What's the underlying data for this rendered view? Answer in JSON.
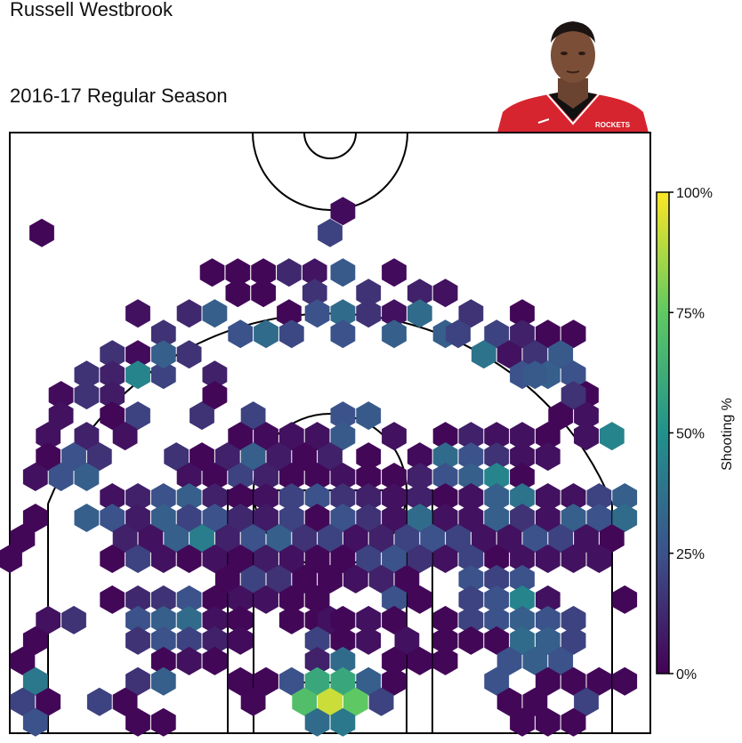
{
  "title_line1": "Russell Westbrook",
  "title_line2": "2016-17 Regular Season",
  "player_image": "player-headshot",
  "chart_data": {
    "type": "heatmap",
    "subtype": "hexbin-shot-chart",
    "court": "half-court, basket at bottom",
    "x_range": [
      -250,
      250
    ],
    "y_range": [
      -47.5,
      422.5
    ],
    "colormap": "viridis",
    "colorbar": {
      "label": "Shooting %",
      "ticks": [
        "0%",
        "25%",
        "50%",
        "75%",
        "100%"
      ],
      "range": [
        0,
        1
      ],
      "placement": "right"
    },
    "grid": false,
    "bins": [
      [
        -225,
        344,
        0.02
      ],
      [
        10,
        361,
        0.03
      ],
      [
        0,
        344,
        0.2
      ],
      [
        -92,
        313,
        0.02
      ],
      [
        -72,
        313,
        0.02
      ],
      [
        -52,
        313,
        0.02
      ],
      [
        -32,
        313,
        0.12
      ],
      [
        -12,
        313,
        0.06
      ],
      [
        10,
        313,
        0.28
      ],
      [
        50,
        313,
        0.03
      ],
      [
        -72,
        297,
        0.02
      ],
      [
        -52,
        297,
        0.02
      ],
      [
        -32,
        281,
        0.02
      ],
      [
        -12,
        297,
        0.15
      ],
      [
        10,
        281,
        0.35
      ],
      [
        30,
        297,
        0.15
      ],
      [
        50,
        281,
        0.05
      ],
      [
        70,
        297,
        0.1
      ],
      [
        90,
        297,
        0.05
      ],
      [
        190,
        265,
        0.02
      ],
      [
        -150,
        281,
        0.05
      ],
      [
        -130,
        265,
        0.15
      ],
      [
        -110,
        281,
        0.12
      ],
      [
        -90,
        281,
        0.3
      ],
      [
        -70,
        265,
        0.25
      ],
      [
        -50,
        265,
        0.35
      ],
      [
        -30,
        265,
        0.22
      ],
      [
        -10,
        281,
        0.25
      ],
      [
        10,
        265,
        0.25
      ],
      [
        30,
        281,
        0.15
      ],
      [
        50,
        265,
        0.3
      ],
      [
        70,
        281,
        0.35
      ],
      [
        90,
        265,
        0.3
      ],
      [
        110,
        281,
        0.15
      ],
      [
        130,
        265,
        0.2
      ],
      [
        150,
        281,
        0.02
      ],
      [
        170,
        265,
        0.02
      ],
      [
        100,
        265,
        0.2
      ],
      [
        -170,
        249,
        0.15
      ],
      [
        -150,
        249,
        0.03
      ],
      [
        -130,
        233,
        0.2
      ],
      [
        -110,
        249,
        0.15
      ],
      [
        -90,
        233,
        0.1
      ],
      [
        -190,
        233,
        0.15
      ],
      [
        -210,
        217,
        0.03
      ],
      [
        -170,
        233,
        0.1
      ],
      [
        -150,
        233,
        0.45
      ],
      [
        -130,
        249,
        0.3
      ],
      [
        -190,
        217,
        0.15
      ],
      [
        -170,
        217,
        0.08
      ],
      [
        -150,
        201,
        0.2
      ],
      [
        -100,
        201,
        0.15
      ],
      [
        -90,
        217,
        0.02
      ],
      [
        -210,
        201,
        0.05
      ],
      [
        -190,
        185,
        0.1
      ],
      [
        -170,
        201,
        0.02
      ],
      [
        120,
        249,
        0.38
      ],
      [
        140,
        249,
        0.05
      ],
      [
        150,
        265,
        0.1
      ],
      [
        160,
        249,
        0.15
      ],
      [
        170,
        233,
        0.3
      ],
      [
        180,
        249,
        0.28
      ],
      [
        190,
        233,
        0.25
      ],
      [
        200,
        217,
        0.02
      ],
      [
        150,
        233,
        0.25
      ],
      [
        160,
        233,
        0.28
      ],
      [
        180,
        201,
        0.02
      ],
      [
        200,
        201,
        0.05
      ],
      [
        190,
        217,
        0.15
      ],
      [
        200,
        185,
        0.05
      ],
      [
        -60,
        201,
        0.2
      ],
      [
        10,
        201,
        0.25
      ],
      [
        30,
        201,
        0.28
      ],
      [
        -220,
        185,
        0.05
      ],
      [
        -200,
        169,
        0.25
      ],
      [
        -180,
        169,
        0.15
      ],
      [
        -160,
        185,
        0.05
      ],
      [
        -220,
        169,
        0.02
      ],
      [
        -210,
        153,
        0.25
      ],
      [
        -190,
        153,
        0.3
      ],
      [
        -230,
        153,
        0.05
      ],
      [
        -70,
        185,
        0.02
      ],
      [
        -50,
        185,
        0.03
      ],
      [
        -30,
        185,
        0.05
      ],
      [
        -10,
        185,
        0.05
      ],
      [
        10,
        185,
        0.28
      ],
      [
        30,
        169,
        0.02
      ],
      [
        50,
        185,
        0.05
      ],
      [
        70,
        169,
        0.03
      ],
      [
        90,
        185,
        0.02
      ],
      [
        110,
        185,
        0.1
      ],
      [
        130,
        185,
        0.05
      ],
      [
        150,
        185,
        0.05
      ],
      [
        170,
        185,
        0.02
      ],
      [
        -120,
        169,
        0.15
      ],
      [
        -100,
        169,
        0.02
      ],
      [
        -80,
        169,
        0.1
      ],
      [
        -60,
        169,
        0.3
      ],
      [
        -40,
        169,
        0.08
      ],
      [
        -20,
        169,
        0.02
      ],
      [
        0,
        169,
        0.1
      ],
      [
        90,
        169,
        0.35
      ],
      [
        110,
        169,
        0.25
      ],
      [
        130,
        169,
        0.15
      ],
      [
        150,
        169,
        0.05
      ],
      [
        170,
        169,
        0.05
      ],
      [
        200,
        185,
        0.05
      ],
      [
        220,
        185,
        0.45
      ],
      [
        -110,
        153,
        0.05
      ],
      [
        -90,
        153,
        0.02
      ],
      [
        -70,
        153,
        0.2
      ],
      [
        -50,
        153,
        0.1
      ],
      [
        -30,
        153,
        0.02
      ],
      [
        -10,
        153,
        0.02
      ],
      [
        10,
        153,
        0.05
      ],
      [
        30,
        153,
        0.02
      ],
      [
        50,
        153,
        0.02
      ],
      [
        70,
        153,
        0.1
      ],
      [
        90,
        153,
        0.25
      ],
      [
        110,
        153,
        0.3
      ],
      [
        130,
        153,
        0.45
      ],
      [
        150,
        153,
        0.02
      ],
      [
        -170,
        137,
        0.05
      ],
      [
        -150,
        137,
        0.1
      ],
      [
        -130,
        137,
        0.25
      ],
      [
        -110,
        137,
        0.3
      ],
      [
        -90,
        137,
        0.1
      ],
      [
        -70,
        137,
        0.02
      ],
      [
        -50,
        137,
        0.05
      ],
      [
        -30,
        137,
        0.2
      ],
      [
        -10,
        137,
        0.25
      ],
      [
        10,
        137,
        0.15
      ],
      [
        30,
        137,
        0.1
      ],
      [
        50,
        137,
        0.05
      ],
      [
        70,
        137,
        0.1
      ],
      [
        90,
        137,
        0.02
      ],
      [
        110,
        137,
        0.05
      ],
      [
        130,
        137,
        0.3
      ],
      [
        150,
        137,
        0.38
      ],
      [
        170,
        137,
        0.05
      ],
      [
        190,
        137,
        0.05
      ],
      [
        210,
        137,
        0.2
      ],
      [
        230,
        137,
        0.3
      ],
      [
        -230,
        121,
        0.02
      ],
      [
        -190,
        121,
        0.3
      ],
      [
        -170,
        121,
        0.25
      ],
      [
        -150,
        121,
        0.08
      ],
      [
        -130,
        121,
        0.3
      ],
      [
        -110,
        121,
        0.2
      ],
      [
        -90,
        121,
        0.25
      ],
      [
        -70,
        121,
        0.12
      ],
      [
        -50,
        121,
        0.08
      ],
      [
        -30,
        121,
        0.2
      ],
      [
        -10,
        121,
        0.02
      ],
      [
        10,
        121,
        0.25
      ],
      [
        30,
        121,
        0.15
      ],
      [
        50,
        121,
        0.05
      ],
      [
        70,
        121,
        0.35
      ],
      [
        90,
        121,
        0.05
      ],
      [
        110,
        121,
        0.05
      ],
      [
        130,
        121,
        0.3
      ],
      [
        150,
        121,
        0.15
      ],
      [
        170,
        121,
        0.05
      ],
      [
        190,
        121,
        0.3
      ],
      [
        210,
        121,
        0.25
      ],
      [
        230,
        121,
        0.35
      ],
      [
        -240,
        105,
        0.02
      ],
      [
        -160,
        105,
        0.1
      ],
      [
        -140,
        105,
        0.05
      ],
      [
        -120,
        105,
        0.3
      ],
      [
        -100,
        105,
        0.42
      ],
      [
        -80,
        105,
        0.1
      ],
      [
        -60,
        105,
        0.25
      ],
      [
        -40,
        105,
        0.3
      ],
      [
        -20,
        105,
        0.15
      ],
      [
        0,
        105,
        0.2
      ],
      [
        20,
        105,
        0.05
      ],
      [
        40,
        105,
        0.1
      ],
      [
        60,
        105,
        0.2
      ],
      [
        80,
        105,
        0.25
      ],
      [
        100,
        105,
        0.2
      ],
      [
        120,
        105,
        0.05
      ],
      [
        140,
        105,
        0.05
      ],
      [
        160,
        105,
        0.25
      ],
      [
        180,
        105,
        0.2
      ],
      [
        200,
        105,
        0.05
      ],
      [
        220,
        105,
        0.02
      ],
      [
        -250,
        89,
        0.02
      ],
      [
        -170,
        89,
        0.02
      ],
      [
        -150,
        89,
        0.2
      ],
      [
        -130,
        89,
        0.05
      ],
      [
        -110,
        89,
        0.02
      ],
      [
        -90,
        89,
        0.05
      ],
      [
        -70,
        89,
        0.02
      ],
      [
        -50,
        89,
        0.08
      ],
      [
        -30,
        89,
        0.05
      ],
      [
        -10,
        89,
        0.02
      ],
      [
        10,
        89,
        0.02
      ],
      [
        30,
        89,
        0.2
      ],
      [
        50,
        89,
        0.25
      ],
      [
        70,
        89,
        0.15
      ],
      [
        90,
        89,
        0.05
      ],
      [
        110,
        89,
        0.2
      ],
      [
        130,
        89,
        0.02
      ],
      [
        150,
        89,
        0.05
      ],
      [
        170,
        89,
        0.05
      ],
      [
        190,
        89,
        0.05
      ],
      [
        210,
        89,
        0.05
      ],
      [
        -80,
        73,
        0.02
      ],
      [
        -60,
        73,
        0.2
      ],
      [
        -40,
        73,
        0.15
      ],
      [
        -20,
        73,
        0.02
      ],
      [
        0,
        73,
        0.02
      ],
      [
        20,
        73,
        0.05
      ],
      [
        40,
        73,
        0.1
      ],
      [
        60,
        73,
        0.02
      ],
      [
        110,
        73,
        0.25
      ],
      [
        130,
        73,
        0.2
      ],
      [
        150,
        73,
        0.25
      ],
      [
        -170,
        57,
        0.02
      ],
      [
        -150,
        57,
        0.12
      ],
      [
        -130,
        57,
        0.15
      ],
      [
        -110,
        57,
        0.25
      ],
      [
        -90,
        57,
        0.02
      ],
      [
        -70,
        57,
        0.05
      ],
      [
        -50,
        57,
        0.05
      ],
      [
        -30,
        57,
        0.02
      ],
      [
        -10,
        57,
        0.02
      ],
      [
        50,
        57,
        0.25
      ],
      [
        70,
        57,
        0.02
      ],
      [
        110,
        57,
        0.2
      ],
      [
        130,
        57,
        0.25
      ],
      [
        150,
        57,
        0.45
      ],
      [
        170,
        57,
        0.05
      ],
      [
        230,
        57,
        0.02
      ],
      [
        -220,
        41,
        0.05
      ],
      [
        -200,
        41,
        0.15
      ],
      [
        -150,
        41,
        0.25
      ],
      [
        -130,
        41,
        0.3
      ],
      [
        -110,
        41,
        0.35
      ],
      [
        -90,
        41,
        0.05
      ],
      [
        -70,
        41,
        0.02
      ],
      [
        -30,
        41,
        0.02
      ],
      [
        -10,
        41,
        0.02
      ],
      [
        0,
        41,
        0.05
      ],
      [
        10,
        41,
        0.02
      ],
      [
        30,
        41,
        0.05
      ],
      [
        50,
        41,
        0.02
      ],
      [
        90,
        41,
        0.02
      ],
      [
        110,
        41,
        0.2
      ],
      [
        130,
        41,
        0.25
      ],
      [
        150,
        41,
        0.3
      ],
      [
        170,
        41,
        0.25
      ],
      [
        190,
        41,
        0.2
      ],
      [
        -230,
        25,
        0.02
      ],
      [
        -150,
        25,
        0.15
      ],
      [
        -130,
        25,
        0.25
      ],
      [
        -110,
        25,
        0.2
      ],
      [
        -90,
        25,
        0.1
      ],
      [
        -70,
        25,
        0.03
      ],
      [
        -10,
        25,
        0.2
      ],
      [
        10,
        25,
        0.02
      ],
      [
        30,
        25,
        0.05
      ],
      [
        60,
        25,
        0.05
      ],
      [
        90,
        25,
        0.02
      ],
      [
        110,
        25,
        0.02
      ],
      [
        130,
        25,
        0.02
      ],
      [
        150,
        25,
        0.35
      ],
      [
        170,
        25,
        0.3
      ],
      [
        190,
        25,
        0.2
      ],
      [
        -240,
        9,
        0.02
      ],
      [
        -130,
        9,
        0.02
      ],
      [
        -110,
        9,
        0.05
      ],
      [
        -90,
        9,
        0.02
      ],
      [
        -10,
        9,
        0.1
      ],
      [
        10,
        9,
        0.35
      ],
      [
        50,
        9,
        0.02
      ],
      [
        70,
        9,
        0.02
      ],
      [
        90,
        9,
        0.02
      ],
      [
        140,
        9,
        0.25
      ],
      [
        160,
        9,
        0.3
      ],
      [
        180,
        9,
        0.25
      ],
      [
        -230,
        -7,
        0.4
      ],
      [
        -150,
        -7,
        0.15
      ],
      [
        -130,
        -7,
        0.3
      ],
      [
        -70,
        -7,
        0.02
      ],
      [
        -50,
        -7,
        0.02
      ],
      [
        -30,
        -7,
        0.25
      ],
      [
        -10,
        -7,
        0.6
      ],
      [
        10,
        -7,
        0.6
      ],
      [
        30,
        -7,
        0.3
      ],
      [
        50,
        -7,
        0.02
      ],
      [
        130,
        -7,
        0.25
      ],
      [
        170,
        -7,
        0.02
      ],
      [
        190,
        -7,
        0.02
      ],
      [
        210,
        -7,
        0.02
      ],
      [
        230,
        -7,
        0.02
      ],
      [
        -240,
        -23,
        0.2
      ],
      [
        -220,
        -23,
        0.02
      ],
      [
        -180,
        -23,
        0.2
      ],
      [
        -160,
        -23,
        0.02
      ],
      [
        -60,
        -23,
        0.02
      ],
      [
        -20,
        -23,
        0.7
      ],
      [
        0,
        -23,
        0.92
      ],
      [
        20,
        -23,
        0.75
      ],
      [
        40,
        -23,
        0.2
      ],
      [
        140,
        -23,
        0.02
      ],
      [
        160,
        -23,
        0.02
      ],
      [
        200,
        -23,
        0.2
      ],
      [
        -230,
        -39,
        0.25
      ],
      [
        -150,
        -39,
        0.02
      ],
      [
        -130,
        -39,
        0.02
      ],
      [
        -10,
        -39,
        0.35
      ],
      [
        10,
        -39,
        0.4
      ],
      [
        150,
        -39,
        0.02
      ],
      [
        170,
        -39,
        0.02
      ],
      [
        190,
        -39,
        0.02
      ]
    ]
  }
}
